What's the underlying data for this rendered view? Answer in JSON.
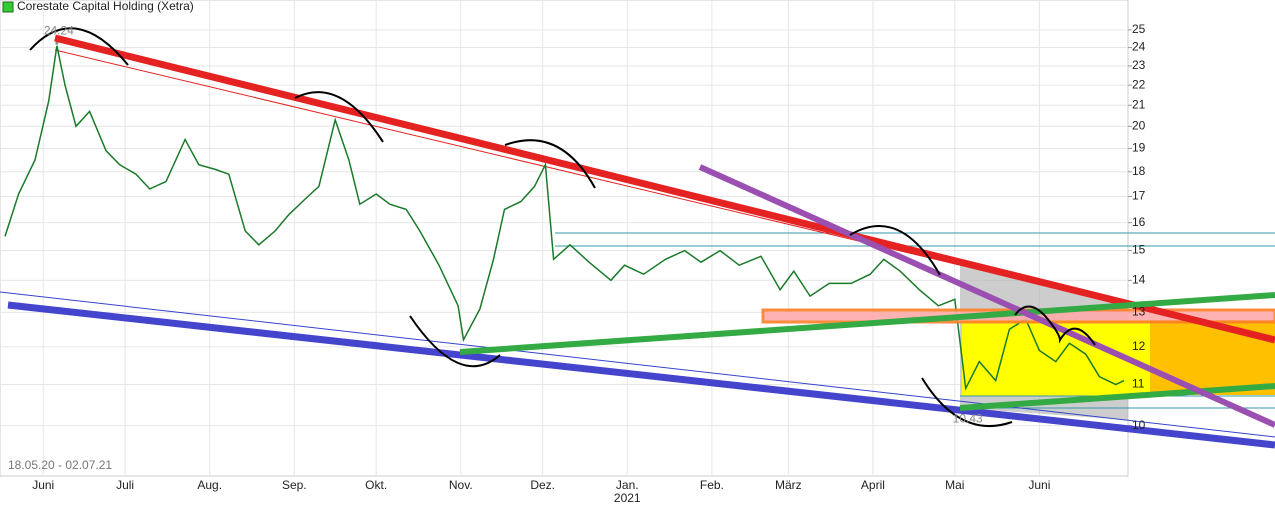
{
  "chart_data": {
    "type": "line",
    "title": "Corestate Capital Holding (Xetra)",
    "subtitle": "18.05.20 - 02.07.21",
    "log_scale": true,
    "grid": true,
    "series": [
      {
        "name": "Corestate Capital Holding (Xetra)",
        "color": "#1a7a2a",
        "x": [
          0,
          5,
          11,
          16,
          19,
          22,
          26,
          31,
          37,
          42,
          48,
          53,
          59,
          66,
          71,
          77,
          82,
          88,
          93,
          99,
          104,
          110,
          115,
          121,
          126,
          130,
          136,
          141,
          147,
          152,
          159,
          166,
          168,
          174,
          179,
          183,
          189,
          194,
          198,
          201,
          207,
          214,
          222,
          227,
          234,
          242,
          249,
          255,
          262,
          269,
          277,
          284,
          289,
          295,
          302,
          310,
          317,
          322,
          328,
          335,
          342,
          348,
          352,
          357,
          363,
          368,
          374,
          379,
          385,
          390,
          396,
          401,
          407,
          410
        ],
        "values": [
          15.5,
          17.1,
          18.5,
          21.2,
          24.1,
          22.0,
          20.0,
          20.7,
          18.9,
          18.3,
          17.9,
          17.3,
          17.6,
          19.4,
          18.3,
          18.1,
          17.9,
          15.7,
          15.2,
          15.7,
          16.3,
          16.9,
          17.4,
          20.3,
          18.5,
          16.7,
          17.1,
          16.7,
          16.5,
          15.7,
          14.5,
          13.2,
          12.2,
          13.1,
          14.7,
          16.5,
          16.8,
          17.4,
          18.3,
          14.7,
          15.2,
          14.6,
          14.0,
          14.5,
          14.2,
          14.7,
          15.0,
          14.6,
          15.0,
          14.5,
          14.8,
          13.7,
          14.3,
          13.5,
          13.9,
          13.9,
          14.2,
          14.7,
          14.3,
          13.7,
          13.2,
          13.4,
          10.9,
          11.6,
          11.1,
          12.5,
          12.8,
          11.9,
          11.6,
          12.1,
          11.8,
          11.2,
          11.0,
          11.1
        ]
      }
    ],
    "extremes": [
      {
        "x": 19,
        "value": 24.24
      },
      {
        "x": 352,
        "value": 10.43
      }
    ],
    "xlim": [
      0,
      410
    ],
    "xticks": [
      {
        "value": 14,
        "label": "Juni"
      },
      {
        "value": 44,
        "label": "Juli"
      },
      {
        "value": 75,
        "label": "Aug."
      },
      {
        "value": 106,
        "label": "Sep."
      },
      {
        "value": 136,
        "label": "Okt."
      },
      {
        "value": 167,
        "label": "Nov."
      },
      {
        "value": 197,
        "label": "Dez."
      },
      {
        "value": 228,
        "label": "Jan."
      },
      {
        "value": 259,
        "label": "Feb."
      },
      {
        "value": 287,
        "label": "März"
      },
      {
        "value": 318,
        "label": "April"
      },
      {
        "value": 348,
        "label": "Mai"
      },
      {
        "value": 379,
        "label": "Juni"
      }
    ],
    "year_marker": {
      "x": 228,
      "text": "2021"
    },
    "ylim": [
      8.9,
      25.7
    ],
    "yticks": [
      10,
      11,
      12,
      13,
      14,
      15,
      16,
      17,
      18,
      19,
      20,
      21,
      22,
      23,
      24,
      25
    ]
  }
}
